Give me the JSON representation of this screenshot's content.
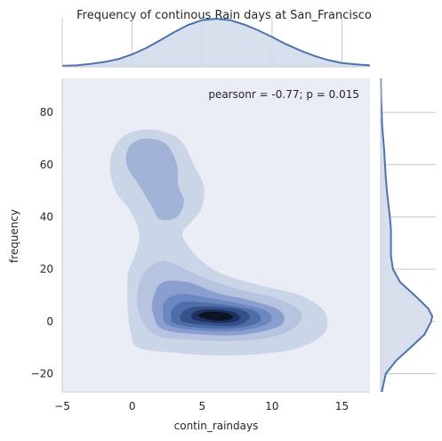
{
  "chart_data": {
    "type": "kde-joint",
    "title": "Frequency of continous Rain days at San_Francisco",
    "xlabel": "contin_raindays",
    "ylabel": "frequency",
    "xlim": [
      -5,
      17
    ],
    "ylim": [
      -27,
      93
    ],
    "xticks": [
      -5,
      0,
      5,
      10,
      15
    ],
    "yticks": [
      -20,
      0,
      20,
      40,
      60,
      80
    ],
    "annotation": "pearsonr = -0.77; p = 0.015",
    "grid": true,
    "kde_modes": [
      {
        "x": 6.2,
        "y": 2.5,
        "density": "high"
      },
      {
        "x": 1.5,
        "y": 56,
        "density": "low"
      }
    ],
    "kde_levels": [
      {
        "level": 1,
        "points": [
          [
            0.4,
            -10
          ],
          [
            3,
            -12
          ],
          [
            6,
            -13
          ],
          [
            9,
            -12.5
          ],
          [
            12,
            -10
          ],
          [
            13.8,
            -4
          ],
          [
            13.7,
            4
          ],
          [
            12,
            10
          ],
          [
            9,
            14
          ],
          [
            6.5,
            18
          ],
          [
            5,
            23
          ],
          [
            4,
            29
          ],
          [
            3.6,
            34
          ],
          [
            4.4,
            39
          ],
          [
            5,
            44
          ],
          [
            5.1,
            52
          ],
          [
            4.4,
            60
          ],
          [
            3.5,
            69
          ],
          [
            2,
            73
          ],
          [
            0.3,
            73
          ],
          [
            -1,
            69
          ],
          [
            -1.6,
            60
          ],
          [
            -1.2,
            50
          ],
          [
            -0.1,
            42
          ],
          [
            0.5,
            34
          ],
          [
            0.3,
            27
          ],
          [
            -0.3,
            18
          ],
          [
            -0.3,
            4
          ],
          [
            -0.1,
            -4
          ]
        ]
      },
      {
        "level": 2,
        "points": [
          [
            1.6,
            -5
          ],
          [
            4,
            -7
          ],
          [
            7,
            -7.5
          ],
          [
            10,
            -6
          ],
          [
            11.8,
            -1.5
          ],
          [
            12,
            4
          ],
          [
            10.2,
            9
          ],
          [
            7.5,
            12.5
          ],
          [
            5,
            17
          ],
          [
            3,
            22
          ],
          [
            2,
            23
          ],
          [
            0.9,
            19
          ],
          [
            0.4,
            12
          ],
          [
            0.5,
            3
          ]
        ]
      },
      {
        "level": 3,
        "points": [
          [
            -0.2,
            67
          ],
          [
            0.9,
            70
          ],
          [
            2.4,
            68
          ],
          [
            3.2,
            60
          ],
          [
            3.3,
            52
          ],
          [
            3.7,
            46
          ],
          [
            3.2,
            40
          ],
          [
            2,
            39
          ],
          [
            1.4,
            44
          ],
          [
            0.5,
            52
          ],
          [
            -0.4,
            60
          ]
        ]
      },
      {
        "level": 4,
        "points": [
          [
            2.2,
            -3
          ],
          [
            5,
            -5
          ],
          [
            8,
            -5
          ],
          [
            10.6,
            -1.5
          ],
          [
            10.6,
            4
          ],
          [
            8.5,
            8
          ],
          [
            6,
            11
          ],
          [
            4,
            15
          ],
          [
            2.2,
            15
          ],
          [
            1.5,
            9
          ],
          [
            1.5,
            3
          ]
        ]
      },
      {
        "level": 5,
        "points": [
          [
            2.6,
            -1.5
          ],
          [
            5,
            -3.5
          ],
          [
            7.8,
            -3.5
          ],
          [
            9.8,
            -0.5
          ],
          [
            9.6,
            4
          ],
          [
            7.5,
            7
          ],
          [
            5.5,
            9
          ],
          [
            3.5,
            10.5
          ],
          [
            2.4,
            8
          ],
          [
            2.2,
            3
          ]
        ]
      },
      {
        "level": 6,
        "points": [
          [
            3,
            -0.8
          ],
          [
            5,
            -2.5
          ],
          [
            7.5,
            -2.5
          ],
          [
            9.1,
            0
          ],
          [
            8.8,
            4
          ],
          [
            7,
            6
          ],
          [
            5,
            7.3
          ],
          [
            3.5,
            7.3
          ],
          [
            2.8,
            4
          ],
          [
            2.8,
            1.5
          ]
        ]
      },
      {
        "level": 7,
        "points": [
          [
            3.6,
            0
          ],
          [
            5.5,
            -1.5
          ],
          [
            7.5,
            -1.5
          ],
          [
            8.4,
            1.5
          ],
          [
            7.8,
            4.5
          ],
          [
            6,
            5.6
          ],
          [
            4.4,
            5.5
          ],
          [
            3.6,
            3.5
          ]
        ]
      },
      {
        "level": 8,
        "points": [
          [
            4.3,
            1
          ],
          [
            5.6,
            -0.4
          ],
          [
            7.2,
            -0.3
          ],
          [
            7.7,
            1.8
          ],
          [
            7,
            4
          ],
          [
            5.6,
            4.6
          ],
          [
            4.5,
            3.8
          ]
        ]
      },
      {
        "level": 9,
        "points": [
          [
            4.8,
            1.8
          ],
          [
            5.8,
            0.4
          ],
          [
            6.9,
            0.6
          ],
          [
            7.2,
            2
          ],
          [
            6.6,
            3.4
          ],
          [
            5.5,
            3.8
          ],
          [
            4.9,
            3
          ]
        ]
      }
    ],
    "kde_level_fills": [
      "#cbd5e8",
      "#b7c4e0",
      "#a2b3d8",
      "#8a9fcf",
      "#6b88c0",
      "#4f6ea8",
      "#35508a",
      "#1e3260",
      "#0c1424"
    ],
    "x_marginal_density": [
      {
        "x": -5,
        "d": 0.02
      },
      {
        "x": -4,
        "d": 0.03
      },
      {
        "x": -3,
        "d": 0.06
      },
      {
        "x": -2,
        "d": 0.1
      },
      {
        "x": -1,
        "d": 0.16
      },
      {
        "x": 0,
        "d": 0.26
      },
      {
        "x": 1,
        "d": 0.39
      },
      {
        "x": 2,
        "d": 0.55
      },
      {
        "x": 3,
        "d": 0.72
      },
      {
        "x": 4,
        "d": 0.87
      },
      {
        "x": 5,
        "d": 0.97
      },
      {
        "x": 6,
        "d": 1.0
      },
      {
        "x": 7,
        "d": 0.97
      },
      {
        "x": 8,
        "d": 0.88
      },
      {
        "x": 9,
        "d": 0.76
      },
      {
        "x": 10,
        "d": 0.62
      },
      {
        "x": 11,
        "d": 0.47
      },
      {
        "x": 12,
        "d": 0.34
      },
      {
        "x": 13,
        "d": 0.23
      },
      {
        "x": 14,
        "d": 0.14
      },
      {
        "x": 15,
        "d": 0.08
      },
      {
        "x": 16,
        "d": 0.05
      },
      {
        "x": 17,
        "d": 0.03
      }
    ],
    "y_marginal_density": [
      {
        "y": -27,
        "d": 0.02
      },
      {
        "y": -20,
        "d": 0.1
      },
      {
        "y": -15,
        "d": 0.3
      },
      {
        "y": -10,
        "d": 0.58
      },
      {
        "y": -5,
        "d": 0.85
      },
      {
        "y": 0,
        "d": 0.98
      },
      {
        "y": 2,
        "d": 1.0
      },
      {
        "y": 5,
        "d": 0.92
      },
      {
        "y": 10,
        "d": 0.66
      },
      {
        "y": 15,
        "d": 0.38
      },
      {
        "y": 20,
        "d": 0.24
      },
      {
        "y": 25,
        "d": 0.2
      },
      {
        "y": 30,
        "d": 0.2
      },
      {
        "y": 35,
        "d": 0.2
      },
      {
        "y": 40,
        "d": 0.18
      },
      {
        "y": 45,
        "d": 0.15
      },
      {
        "y": 50,
        "d": 0.12
      },
      {
        "y": 55,
        "d": 0.1
      },
      {
        "y": 60,
        "d": 0.085
      },
      {
        "y": 65,
        "d": 0.07
      },
      {
        "y": 70,
        "d": 0.05
      },
      {
        "y": 75,
        "d": 0.03
      },
      {
        "y": 80,
        "d": 0.02
      },
      {
        "y": 85,
        "d": 0.01
      },
      {
        "y": 93,
        "d": 0.003
      }
    ],
    "colors": {
      "joint_background": "#eaedf6",
      "marginal_line": "#4c72b0",
      "marginal_fill": "#d4dbea",
      "grid_light": "#c8c8c8",
      "joint_spine": "#cccccc"
    }
  }
}
